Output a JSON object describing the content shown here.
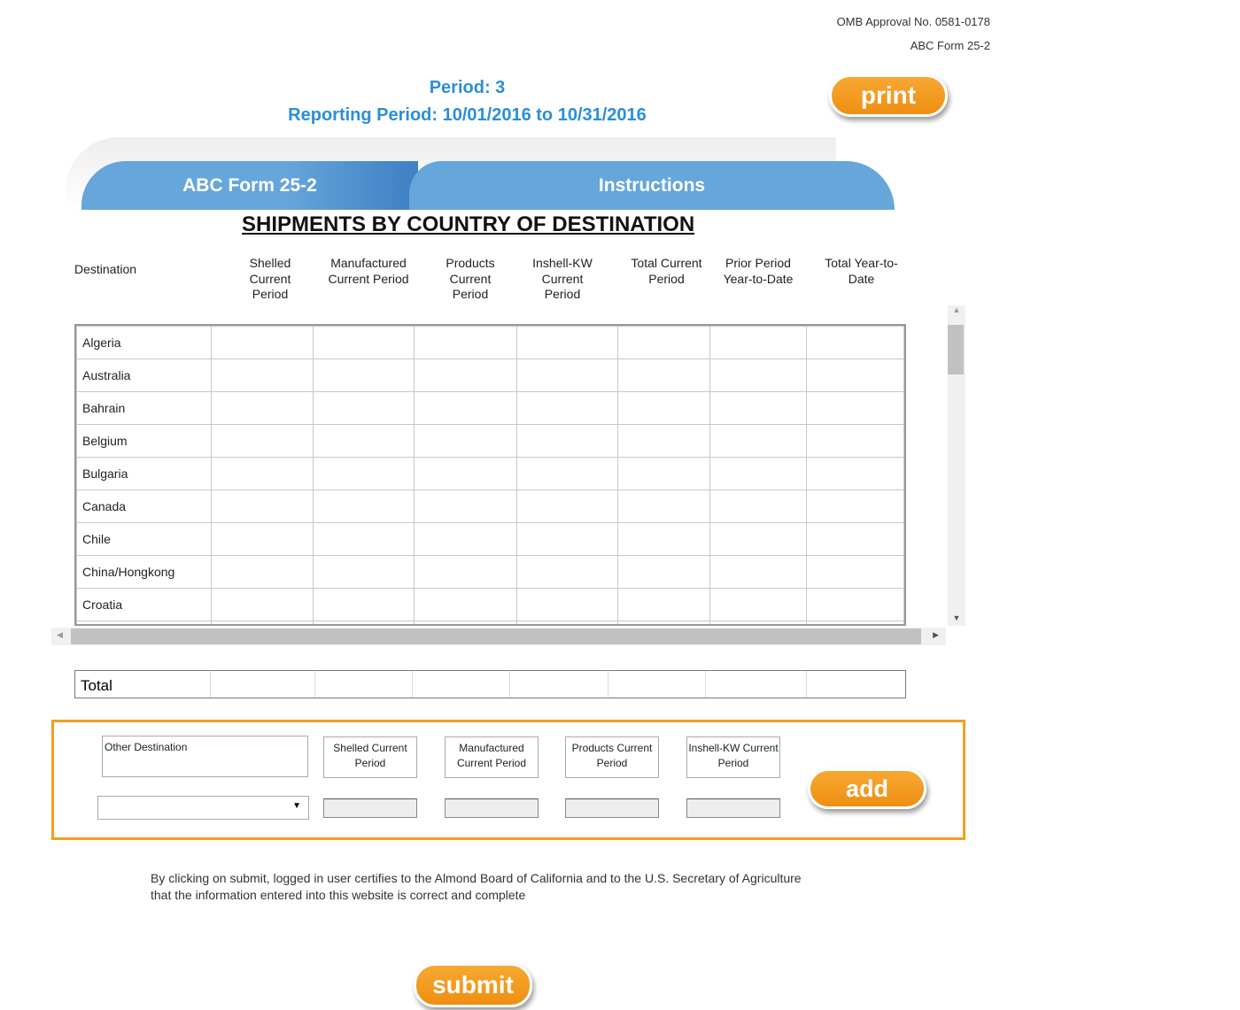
{
  "header": {
    "omb": "OMB Approval No. 0581-0178",
    "form": "ABC Form 25-2",
    "period": "Period: 3",
    "reporting_period": "Reporting Period: 10/01/2016 to 10/31/2016",
    "print_label": "print"
  },
  "tabs": [
    {
      "label": "ABC Form 25-2"
    },
    {
      "label": "Instructions"
    }
  ],
  "title": "SHIPMENTS BY COUNTRY OF DESTINATION",
  "columns": [
    "Destination",
    "Shelled Current Period",
    "Manufactured Current Period",
    "Products Current Period",
    "Inshell-KW Current Period",
    "Total Current Period",
    "Prior Period Year-to-Date",
    "Total Year-to-Date"
  ],
  "rows": [
    "Algeria",
    "Australia",
    "Bahrain",
    "Belgium",
    "Bulgaria",
    "Canada",
    "Chile",
    "China/Hongkong",
    "Croatia"
  ],
  "total_label": "Total",
  "other": {
    "destination_label": "Other Destination",
    "shelled": "Shelled Current Period",
    "manufactured": "Manufactured Current Period",
    "products": "Products Current Period",
    "inshell": "Inshell-KW Current Period",
    "select_value": "",
    "add_label": "add"
  },
  "certification": "By clicking on submit, logged in user certifies to the Almond Board of California and to the U.S. Secretary of Agriculture that the information entered into this website is correct and complete",
  "submit_label": "submit",
  "colors": {
    "accent_blue": "#2b8fd8",
    "tab_blue": "#66a6da",
    "orange": "#f0a020"
  }
}
